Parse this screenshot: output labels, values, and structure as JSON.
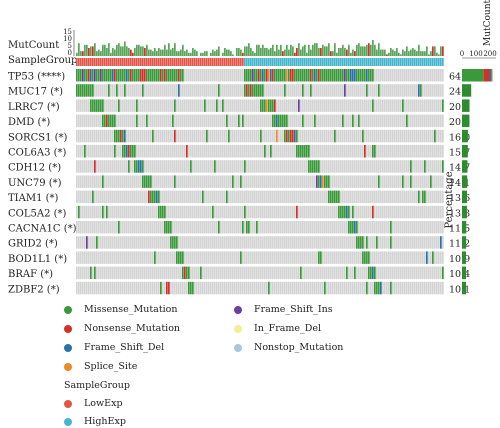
{
  "chart_data": {
    "type": "heatmap",
    "title": "",
    "top_track_label": "MutCount",
    "top_track_ticks": [
      "15",
      "10",
      "5",
      "0"
    ],
    "group_track_label": "SampleGroup",
    "right_panel_title": "MutCount",
    "right_panel_ticks": [
      "0",
      "100",
      "200"
    ],
    "right_axis_label": "Percentage",
    "genes": [
      {
        "name": "TP53 (****)",
        "percentage": "64.5",
        "value": 64.5
      },
      {
        "name": "MUC17 (*)",
        "percentage": "24.8",
        "value": 24.8
      },
      {
        "name": "LRRC7 (*)",
        "percentage": "20.3",
        "value": 20.3
      },
      {
        "name": "DMD (*)",
        "percentage": "20.0",
        "value": 20.0
      },
      {
        "name": "SORCS1 (*)",
        "percentage": "16.0",
        "value": 16.0
      },
      {
        "name": "COL6A3 (*)",
        "percentage": "15.7",
        "value": 15.7
      },
      {
        "name": "CDH12 (*)",
        "percentage": "14.7",
        "value": 14.7
      },
      {
        "name": "UNC79 (*)",
        "percentage": "14.1",
        "value": 14.1
      },
      {
        "name": "TIAM1 (*)",
        "percentage": "13.6",
        "value": 13.6
      },
      {
        "name": "COL5A2 (*)",
        "percentage": "13.3",
        "value": 13.3
      },
      {
        "name": "CACNA1C (*)",
        "percentage": "11.5",
        "value": 11.5
      },
      {
        "name": "GRID2 (*)",
        "percentage": "11.2",
        "value": 11.2
      },
      {
        "name": "BOD1L1 (*)",
        "percentage": "10.9",
        "value": 10.9
      },
      {
        "name": "BRAF (*)",
        "percentage": "10.4",
        "value": 10.4
      },
      {
        "name": "ZDBF2 (*)",
        "percentage": "10.1",
        "value": 10.1
      }
    ],
    "tp53_mutcount_breakdown": [
      {
        "type": "Missense_Mutation",
        "value": 140
      },
      {
        "type": "Nonsense_Mutation",
        "value": 38
      },
      {
        "type": "Frame_Shift_Del",
        "value": 14
      },
      {
        "type": "Splice_Site",
        "value": 6
      }
    ],
    "sample_groups": [
      {
        "name": "LowExp",
        "fraction": 0.455
      },
      {
        "name": "HighExp",
        "fraction": 0.545
      }
    ],
    "mutation_legend": [
      {
        "label": "Missense_Mutation",
        "color": "#3a9a3a"
      },
      {
        "label": "Frame_Shift_Ins",
        "color": "#6b3f9a"
      },
      {
        "label": "Nonsense_Mutation",
        "color": "#d62f2a"
      },
      {
        "label": "In_Frame_Del",
        "color": "#f2ee9a"
      },
      {
        "label": "Frame_Shift_Del",
        "color": "#2a72a8"
      },
      {
        "label": "Nonstop_Mutation",
        "color": "#a6c8dc"
      },
      {
        "label": "Splice_Site",
        "color": "#f08a25"
      }
    ],
    "group_legend_title": "SampleGroup",
    "group_legend": [
      {
        "label": "LowExp",
        "color": "#e2554a"
      },
      {
        "label": "HighExp",
        "color": "#46b6cf"
      }
    ],
    "background_color": "#d4d4d4"
  }
}
